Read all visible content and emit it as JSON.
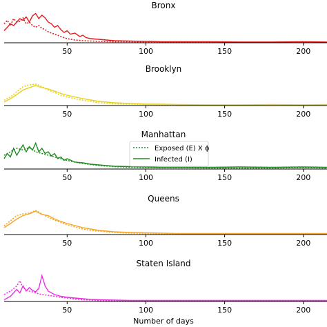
{
  "chart_data": {
    "type": "line",
    "xlabel": "Number of days",
    "xlim": [
      10,
      215
    ],
    "xticks": [
      50,
      100,
      150,
      200
    ],
    "legend": {
      "placement": "inside-center (Manhattan panel)",
      "entries": [
        {
          "label": "Exposed (E) X ϕ",
          "style": "dotted"
        },
        {
          "label": "Infected (I)",
          "style": "solid"
        }
      ]
    },
    "panels": [
      {
        "title": "Bronx",
        "color": "#e41a1c",
        "ylim": [
          0,
          1.0
        ],
        "series": [
          {
            "name": "Exposed (E) X ϕ",
            "style": "dotted",
            "x": [
              10,
              12,
              14,
              16,
              18,
              20,
              22,
              24,
              26,
              28,
              30,
              32,
              34,
              36,
              38,
              40,
              42,
              44,
              46,
              48,
              50,
              55,
              60,
              70,
              80,
              90,
              100,
              120,
              140,
              160,
              180,
              200,
              215
            ],
            "y": [
              0.55,
              0.65,
              0.5,
              0.7,
              0.6,
              0.62,
              0.72,
              0.55,
              0.6,
              0.5,
              0.45,
              0.5,
              0.42,
              0.38,
              0.32,
              0.28,
              0.25,
              0.22,
              0.18,
              0.15,
              0.12,
              0.08,
              0.06,
              0.04,
              0.03,
              0.03,
              0.02,
              0.02,
              0.02,
              0.02,
              0.02,
              0.02,
              0.02
            ]
          },
          {
            "name": "Infected (I)",
            "style": "solid",
            "x": [
              10,
              12,
              14,
              16,
              18,
              20,
              22,
              24,
              26,
              28,
              30,
              32,
              34,
              36,
              38,
              40,
              42,
              44,
              46,
              48,
              50,
              52,
              55,
              58,
              60,
              62,
              65,
              70,
              75,
              80,
              90,
              100,
              110,
              120,
              140,
              160,
              180,
              200,
              215
            ],
            "y": [
              0.35,
              0.45,
              0.55,
              0.5,
              0.6,
              0.7,
              0.65,
              0.75,
              0.6,
              0.78,
              0.85,
              0.7,
              0.8,
              0.72,
              0.6,
              0.55,
              0.45,
              0.5,
              0.38,
              0.3,
              0.35,
              0.25,
              0.28,
              0.18,
              0.22,
              0.15,
              0.12,
              0.1,
              0.08,
              0.06,
              0.05,
              0.04,
              0.03,
              0.03,
              0.03,
              0.02,
              0.02,
              0.03,
              0.02
            ]
          }
        ]
      },
      {
        "title": "Brooklyn",
        "color": "#e8d21a",
        "ylim": [
          0,
          1.0
        ],
        "series": [
          {
            "name": "Exposed (E) X ϕ",
            "style": "dotted",
            "x": [
              10,
              14,
              18,
              22,
              26,
              30,
              34,
              38,
              42,
              46,
              50,
              55,
              60,
              65,
              70,
              80,
              90,
              100,
              120,
              140,
              160,
              180,
              200,
              215
            ],
            "y": [
              0.15,
              0.25,
              0.4,
              0.55,
              0.6,
              0.62,
              0.55,
              0.45,
              0.38,
              0.3,
              0.25,
              0.2,
              0.15,
              0.12,
              0.08,
              0.05,
              0.04,
              0.03,
              0.02,
              0.02,
              0.02,
              0.02,
              0.02,
              0.02
            ]
          },
          {
            "name": "Infected (I)",
            "style": "solid",
            "x": [
              10,
              14,
              18,
              22,
              26,
              30,
              34,
              38,
              42,
              46,
              50,
              55,
              60,
              65,
              70,
              75,
              80,
              90,
              100,
              110,
              120,
              140,
              160,
              180,
              200,
              215
            ],
            "y": [
              0.1,
              0.2,
              0.32,
              0.45,
              0.52,
              0.58,
              0.52,
              0.48,
              0.42,
              0.35,
              0.3,
              0.25,
              0.2,
              0.16,
              0.12,
              0.1,
              0.08,
              0.06,
              0.04,
              0.04,
              0.03,
              0.02,
              0.02,
              0.03,
              0.02,
              0.03
            ]
          }
        ]
      },
      {
        "title": "Manhattan",
        "color": "#228b22",
        "ylim": [
          0,
          1.0
        ],
        "series": [
          {
            "name": "Exposed (E) X ϕ",
            "style": "dotted",
            "x": [
              10,
              14,
              18,
              22,
              26,
              30,
              34,
              38,
              42,
              46,
              50,
              55,
              60,
              65,
              70,
              80,
              90,
              100,
              120,
              140,
              160,
              180,
              200,
              215
            ],
            "y": [
              0.4,
              0.5,
              0.6,
              0.55,
              0.62,
              0.5,
              0.45,
              0.4,
              0.35,
              0.3,
              0.25,
              0.2,
              0.16,
              0.13,
              0.1,
              0.07,
              0.05,
              0.04,
              0.04,
              0.03,
              0.03,
              0.03,
              0.04,
              0.03
            ]
          },
          {
            "name": "Infected (I)",
            "style": "solid",
            "x": [
              10,
              12,
              14,
              16,
              18,
              20,
              22,
              24,
              26,
              28,
              30,
              32,
              34,
              36,
              38,
              40,
              42,
              44,
              46,
              48,
              50,
              55,
              60,
              65,
              70,
              75,
              80,
              90,
              100,
              110,
              120,
              140,
              160,
              180,
              200,
              215
            ],
            "y": [
              0.3,
              0.45,
              0.35,
              0.6,
              0.4,
              0.55,
              0.7,
              0.5,
              0.65,
              0.55,
              0.75,
              0.5,
              0.6,
              0.45,
              0.5,
              0.38,
              0.45,
              0.3,
              0.35,
              0.25,
              0.3,
              0.2,
              0.18,
              0.14,
              0.12,
              0.1,
              0.08,
              0.07,
              0.06,
              0.05,
              0.05,
              0.05,
              0.06,
              0.05,
              0.06,
              0.05
            ]
          }
        ]
      },
      {
        "title": "Queens",
        "color": "#f5a623",
        "ylim": [
          0,
          1.0
        ],
        "series": [
          {
            "name": "Exposed (E) X ϕ",
            "style": "dotted",
            "x": [
              10,
              14,
              18,
              22,
              26,
              30,
              34,
              38,
              42,
              46,
              50,
              55,
              60,
              65,
              70,
              80,
              90,
              100,
              120,
              140,
              160,
              180,
              200,
              215
            ],
            "y": [
              0.25,
              0.4,
              0.55,
              0.6,
              0.62,
              0.7,
              0.6,
              0.5,
              0.42,
              0.35,
              0.28,
              0.22,
              0.16,
              0.12,
              0.1,
              0.06,
              0.04,
              0.03,
              0.02,
              0.02,
              0.02,
              0.02,
              0.02,
              0.02
            ]
          },
          {
            "name": "Infected (I)",
            "style": "solid",
            "x": [
              10,
              14,
              18,
              22,
              26,
              30,
              34,
              38,
              42,
              46,
              50,
              55,
              60,
              65,
              70,
              75,
              80,
              90,
              100,
              110,
              120,
              140,
              160,
              180,
              200,
              215
            ],
            "y": [
              0.2,
              0.32,
              0.45,
              0.55,
              0.6,
              0.68,
              0.58,
              0.55,
              0.45,
              0.38,
              0.32,
              0.26,
              0.2,
              0.16,
              0.12,
              0.1,
              0.08,
              0.06,
              0.05,
              0.04,
              0.03,
              0.03,
              0.03,
              0.03,
              0.03,
              0.03
            ]
          }
        ]
      },
      {
        "title": "Staten Island",
        "color": "#ee2ee2",
        "ylim": [
          0,
          1.0
        ],
        "series": [
          {
            "name": "Exposed (E) X ϕ",
            "style": "dotted",
            "x": [
              10,
              14,
              18,
              20,
              22,
              24,
              26,
              28,
              30,
              32,
              34,
              38,
              42,
              46,
              50,
              55,
              60,
              70,
              80,
              90,
              100,
              120,
              140,
              160,
              180,
              200,
              215
            ],
            "y": [
              0.2,
              0.3,
              0.45,
              0.6,
              0.4,
              0.35,
              0.3,
              0.28,
              0.25,
              0.22,
              0.2,
              0.18,
              0.15,
              0.12,
              0.1,
              0.07,
              0.05,
              0.03,
              0.02,
              0.02,
              0.02,
              0.02,
              0.02,
              0.02,
              0.02,
              0.02,
              0.02
            ]
          },
          {
            "name": "Infected (I)",
            "style": "solid",
            "x": [
              10,
              14,
              18,
              20,
              22,
              24,
              26,
              28,
              30,
              32,
              34,
              36,
              38,
              40,
              42,
              46,
              50,
              55,
              60,
              65,
              70,
              80,
              90,
              100,
              120,
              140,
              160,
              180,
              200,
              215
            ],
            "y": [
              0.05,
              0.15,
              0.35,
              0.25,
              0.45,
              0.3,
              0.4,
              0.32,
              0.28,
              0.38,
              0.75,
              0.45,
              0.3,
              0.25,
              0.2,
              0.15,
              0.12,
              0.1,
              0.08,
              0.06,
              0.05,
              0.04,
              0.03,
              0.03,
              0.03,
              0.03,
              0.03,
              0.03,
              0.03,
              0.03
            ]
          }
        ]
      }
    ]
  }
}
